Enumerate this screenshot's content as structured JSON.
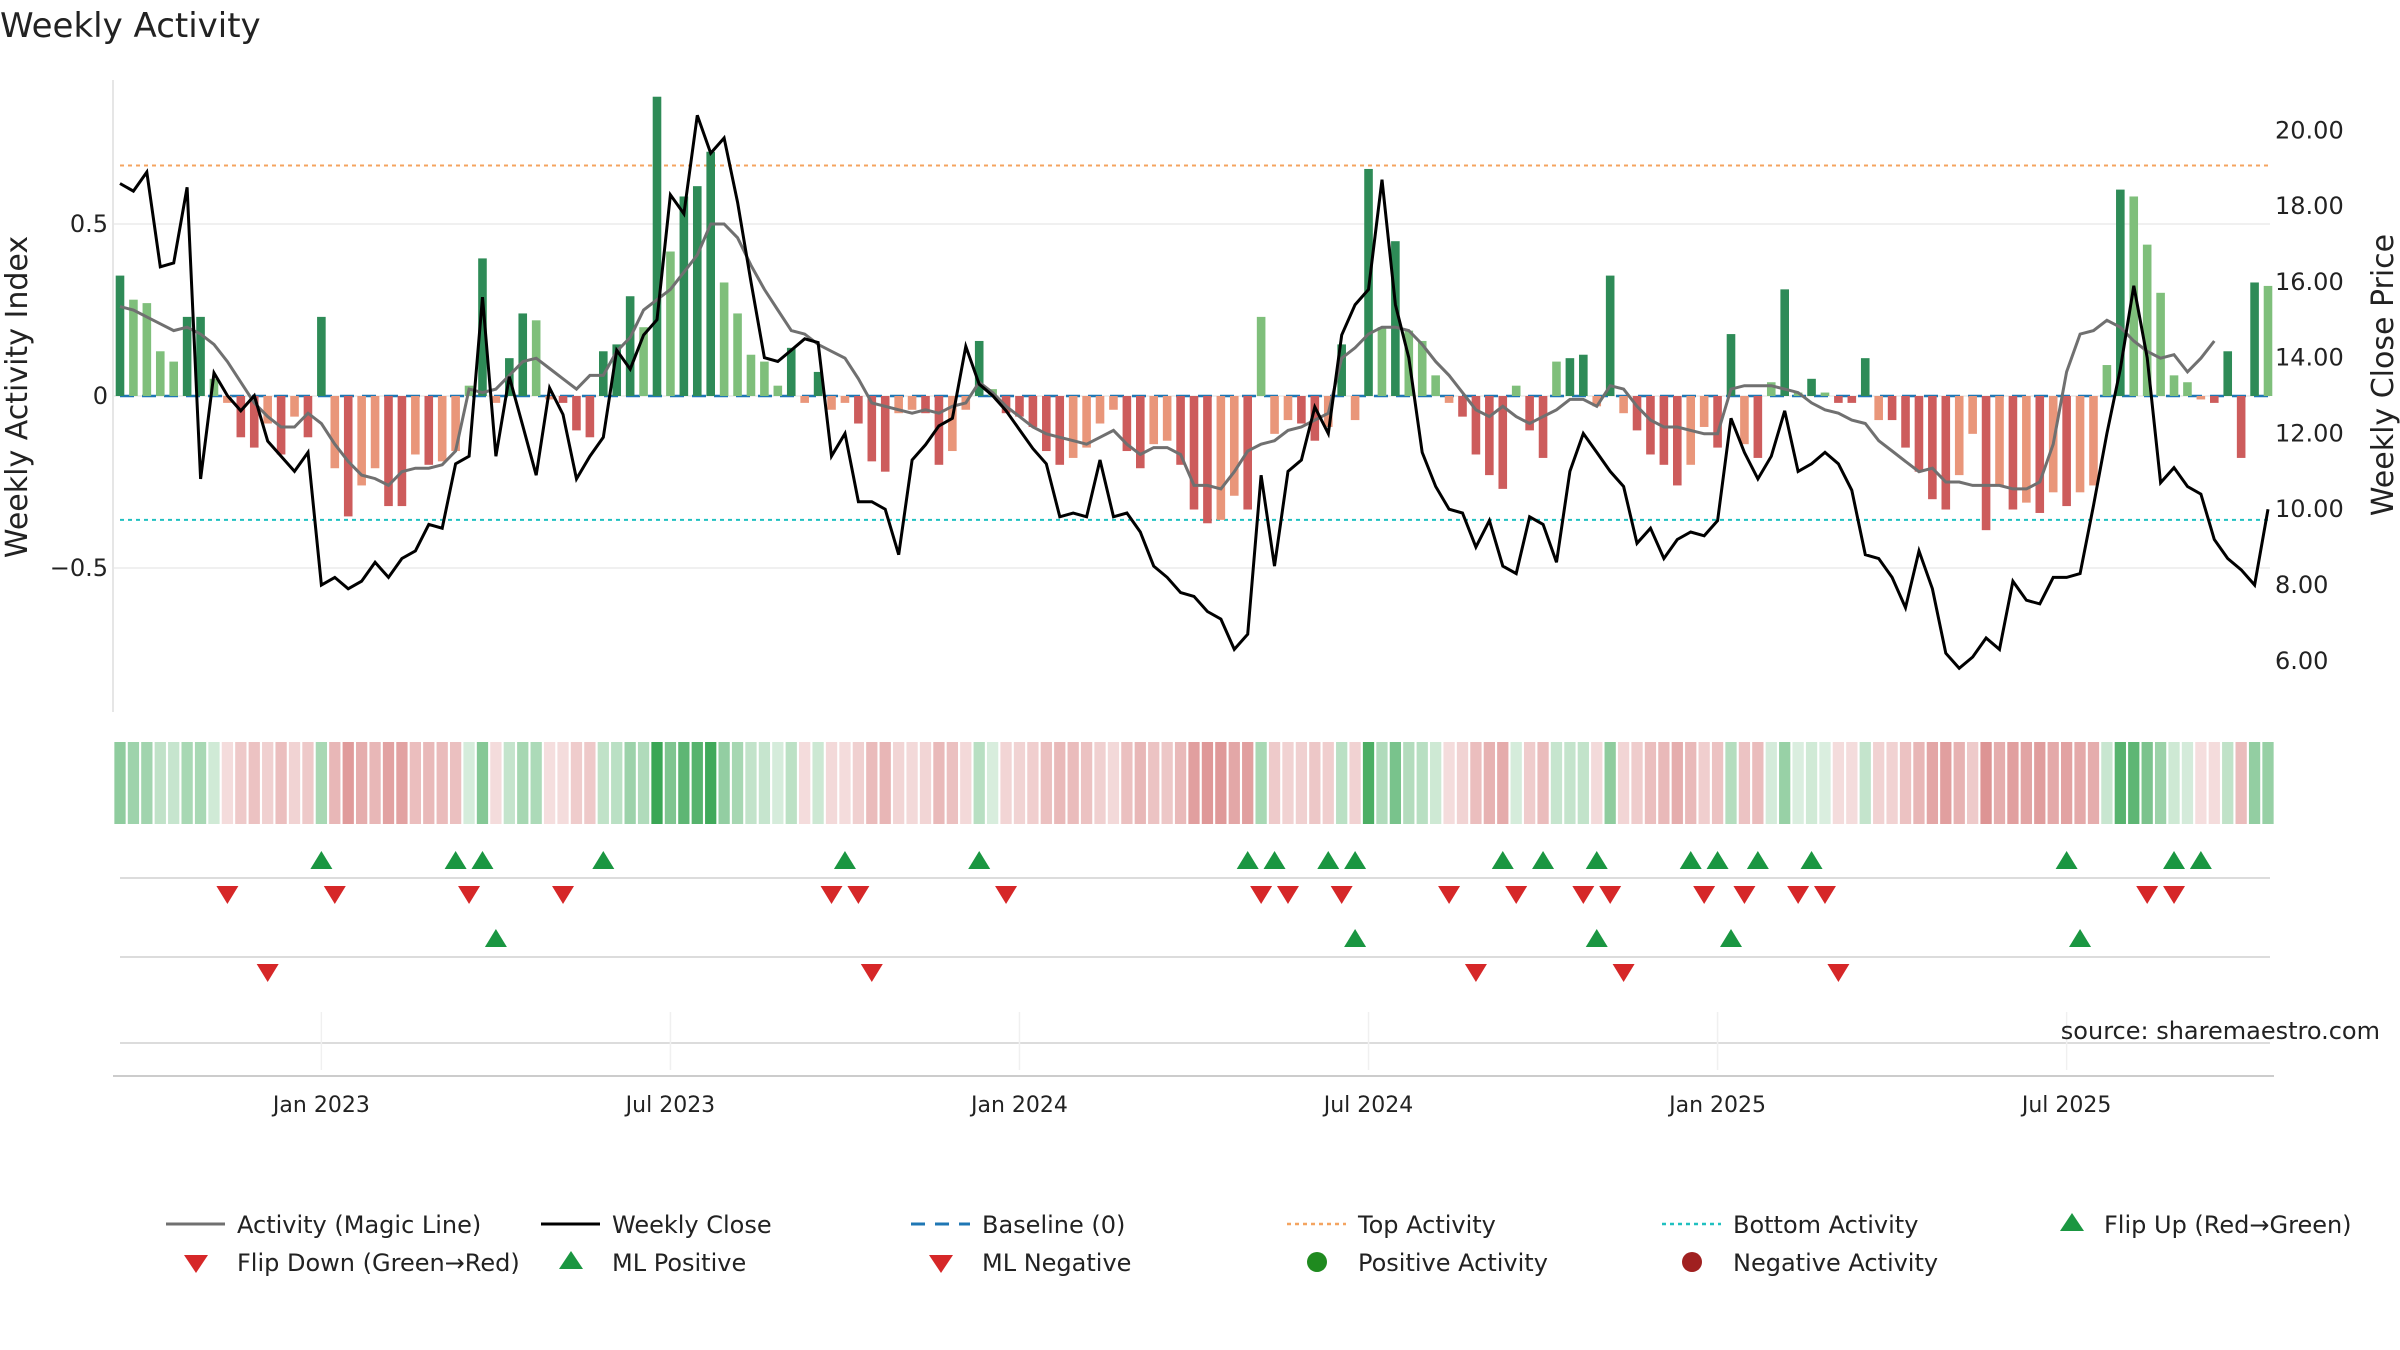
{
  "chart_data": {
    "type": "bar",
    "title": "Weekly Activity",
    "ylabel_left": "Weekly Activity Index",
    "ylabel_right": "Weekly Close Price",
    "source": "source: sharemaestro.com",
    "left_axis": {
      "ylim": [
        -0.92,
        0.92
      ],
      "ticks": [
        {
          "value": 0.5,
          "label": "0.5"
        },
        {
          "value": 0,
          "label": "0"
        },
        {
          "value": -0.5,
          "label": "−0.5"
        }
      ]
    },
    "right_axis": {
      "ylim": [
        4.7,
        21.2
      ],
      "ticks": [
        {
          "value": 20,
          "label": "20.00"
        },
        {
          "value": 18,
          "label": "18.00"
        },
        {
          "value": 16,
          "label": "16.00"
        },
        {
          "value": 14,
          "label": "14.00"
        },
        {
          "value": 12,
          "label": "12.00"
        },
        {
          "value": 10,
          "label": "10.00"
        },
        {
          "value": 8,
          "label": "8.00"
        },
        {
          "value": 6,
          "label": "6.00"
        }
      ]
    },
    "date_ticks": [
      {
        "week": 15,
        "label": "Jan 2023"
      },
      {
        "week": 41,
        "label": "Jul 2023"
      },
      {
        "week": 67,
        "label": "Jan 2024"
      },
      {
        "week": 93,
        "label": "Jul 2024"
      },
      {
        "week": 119,
        "label": "Jan 2025"
      },
      {
        "week": 145,
        "label": "Jul 2025"
      }
    ],
    "top_activity": 0.67,
    "bottom_activity": -0.36,
    "activity": [
      0.35,
      0.28,
      0.27,
      0.13,
      0.1,
      0.23,
      0.23,
      0.05,
      -0.02,
      -0.12,
      -0.15,
      -0.08,
      -0.17,
      -0.06,
      -0.12,
      0.23,
      -0.21,
      -0.35,
      -0.26,
      -0.21,
      -0.32,
      -0.32,
      -0.17,
      -0.2,
      -0.19,
      -0.16,
      0.03,
      0.4,
      -0.02,
      0.11,
      0.24,
      0.22,
      -0.01,
      -0.02,
      -0.1,
      -0.12,
      0.13,
      0.15,
      0.29,
      0.2,
      0.87,
      0.42,
      0.58,
      0.61,
      0.71,
      0.33,
      0.24,
      0.12,
      0.1,
      0.03,
      0.14,
      -0.02,
      0.07,
      -0.04,
      -0.02,
      -0.08,
      -0.19,
      -0.22,
      -0.05,
      -0.04,
      -0.05,
      -0.2,
      -0.16,
      -0.04,
      0.16,
      0.02,
      -0.05,
      -0.06,
      -0.09,
      -0.16,
      -0.2,
      -0.18,
      -0.15,
      -0.08,
      -0.04,
      -0.16,
      -0.21,
      -0.14,
      -0.13,
      -0.2,
      -0.33,
      -0.37,
      -0.36,
      -0.29,
      -0.33,
      0.23,
      -0.11,
      -0.07,
      -0.08,
      -0.13,
      -0.09,
      0.15,
      -0.07,
      0.66,
      0.2,
      0.45,
      0.19,
      0.16,
      0.06,
      -0.02,
      -0.06,
      -0.17,
      -0.23,
      -0.27,
      0.03,
      -0.1,
      -0.18,
      0.1,
      0.11,
      0.12,
      -0.03,
      0.35,
      -0.05,
      -0.1,
      -0.17,
      -0.2,
      -0.26,
      -0.2,
      -0.09,
      -0.15,
      0.18,
      -0.14,
      -0.18,
      0.04,
      0.31,
      0.01,
      0.05,
      0.01,
      -0.02,
      -0.02,
      0.11,
      -0.07,
      -0.07,
      -0.15,
      -0.22,
      -0.3,
      -0.33,
      -0.23,
      -0.11,
      -0.39,
      -0.26,
      -0.33,
      -0.31,
      -0.34,
      -0.28,
      -0.32,
      -0.28,
      -0.26,
      0.09,
      0.6,
      0.58,
      0.44,
      0.3,
      0.06,
      0.04,
      -0.01,
      -0.02,
      0.13,
      -0.18,
      0.33,
      0.32
    ],
    "weekly_close": [
      18.6,
      18.4,
      18.9,
      16.4,
      16.5,
      18.5,
      10.8,
      13.6,
      13.0,
      12.6,
      13.0,
      11.8,
      11.4,
      11.0,
      11.5,
      8.0,
      8.2,
      7.9,
      8.1,
      8.6,
      8.2,
      8.7,
      8.9,
      9.6,
      9.5,
      11.2,
      11.4,
      15.6,
      11.4,
      13.5,
      12.2,
      10.9,
      13.2,
      12.5,
      10.8,
      11.4,
      11.9,
      14.2,
      13.7,
      14.6,
      15.0,
      18.3,
      17.8,
      20.4,
      19.4,
      19.8,
      18.1,
      16.0,
      14.0,
      13.9,
      14.2,
      14.5,
      14.4,
      11.4,
      12.0,
      10.2,
      10.2,
      10.0,
      8.8,
      11.3,
      11.7,
      12.2,
      12.4,
      14.3,
      13.3,
      13.0,
      12.6,
      12.1,
      11.6,
      11.2,
      9.8,
      9.9,
      9.8,
      11.3,
      9.8,
      9.9,
      9.4,
      8.5,
      8.2,
      7.8,
      7.7,
      7.3,
      7.1,
      6.3,
      6.7,
      10.9,
      8.5,
      11.0,
      11.3,
      12.7,
      12.0,
      14.6,
      15.4,
      15.8,
      18.7,
      15.4,
      14.0,
      11.5,
      10.6,
      10.0,
      9.9,
      9.0,
      9.7,
      8.5,
      8.3,
      9.8,
      9.6,
      8.6,
      11.0,
      12.0,
      11.5,
      11.0,
      10.6,
      9.1,
      9.5,
      8.7,
      9.2,
      9.4,
      9.3,
      9.7,
      12.4,
      11.5,
      10.8,
      11.4,
      12.6,
      11.0,
      11.2,
      11.5,
      11.2,
      10.5,
      8.8,
      8.7,
      8.2,
      7.4,
      8.9,
      7.9,
      6.2,
      5.8,
      6.1,
      6.6,
      6.3,
      8.1,
      7.6,
      7.5,
      8.2,
      8.2,
      8.3,
      10.1,
      12.0,
      13.7,
      15.9,
      14.0,
      10.7,
      11.1,
      10.6,
      10.4,
      9.2,
      8.7,
      8.4,
      8.0,
      10.0
    ],
    "magic_line": [
      0.26,
      0.25,
      0.23,
      0.21,
      0.19,
      0.2,
      0.18,
      0.15,
      0.1,
      0.04,
      -0.02,
      -0.06,
      -0.09,
      -0.09,
      -0.05,
      -0.08,
      -0.14,
      -0.19,
      -0.23,
      -0.24,
      -0.26,
      -0.22,
      -0.21,
      -0.21,
      -0.2,
      -0.16,
      0.02,
      0.01,
      0.02,
      0.06,
      0.1,
      0.11,
      0.08,
      0.05,
      0.02,
      0.06,
      0.06,
      0.13,
      0.17,
      0.25,
      0.28,
      0.31,
      0.36,
      0.41,
      0.5,
      0.5,
      0.46,
      0.38,
      0.31,
      0.25,
      0.19,
      0.18,
      0.15,
      0.13,
      0.11,
      0.05,
      -0.02,
      -0.03,
      -0.04,
      -0.05,
      -0.04,
      -0.05,
      -0.03,
      -0.02,
      0.04,
      0.01,
      -0.03,
      -0.06,
      -0.09,
      -0.11,
      -0.12,
      -0.13,
      -0.14,
      -0.12,
      -0.1,
      -0.14,
      -0.17,
      -0.15,
      -0.15,
      -0.17,
      -0.26,
      -0.26,
      -0.27,
      -0.22,
      -0.16,
      -0.14,
      -0.13,
      -0.1,
      -0.09,
      -0.07,
      -0.05,
      0.11,
      0.14,
      0.18,
      0.2,
      0.2,
      0.19,
      0.15,
      0.1,
      0.06,
      0.01,
      -0.04,
      -0.06,
      -0.03,
      -0.06,
      -0.08,
      -0.06,
      -0.04,
      -0.01,
      -0.01,
      -0.03,
      0.03,
      0.02,
      -0.03,
      -0.07,
      -0.09,
      -0.09,
      -0.1,
      -0.11,
      -0.11,
      0.02,
      0.03,
      0.03,
      0.03,
      0.02,
      0.01,
      -0.02,
      -0.04,
      -0.05,
      -0.07,
      -0.08,
      -0.13,
      -0.16,
      -0.19,
      -0.22,
      -0.21,
      -0.25,
      -0.25,
      -0.26,
      -0.26,
      -0.26,
      -0.27,
      -0.27,
      -0.25,
      -0.14,
      0.07,
      0.18,
      0.19,
      0.22,
      0.2,
      0.16,
      0.13,
      0.11,
      0.12,
      0.07,
      0.11,
      0.16
    ],
    "flip_up": [
      15,
      25,
      27,
      36,
      54,
      64,
      84,
      86,
      90,
      92,
      103,
      106,
      110,
      117,
      119,
      122,
      126,
      145,
      153,
      155
    ],
    "flip_down": [
      8,
      16,
      26,
      33,
      53,
      55,
      66,
      85,
      87,
      91,
      99,
      104,
      109,
      111,
      118,
      121,
      125,
      127,
      151,
      153
    ],
    "ml_positive": [
      28,
      92,
      110,
      120,
      146
    ],
    "ml_negative": [
      11,
      56,
      101,
      112,
      128
    ],
    "legend": [
      "Activity (Magic Line)",
      "Weekly Close",
      "Baseline (0)",
      "Top Activity",
      "Bottom Activity",
      "Flip Up (Red→Green)",
      "Flip Down (Green→Red)",
      "ML Positive",
      "ML Negative",
      "Positive Activity",
      "Negative Activity"
    ]
  },
  "colors": {
    "green_strong": "#2e8b57",
    "green_light": "#7fbf7b",
    "red_strong": "#cd5c5c",
    "red_light": "#e9967a",
    "magic_line": "#707070",
    "close_line": "#000000",
    "baseline": "#1f77b4",
    "top_line": "#f4a460",
    "bottom_line": "#20c0c0",
    "marker_up": "#1a9641",
    "marker_down": "#d62728",
    "dot_pos": "#1f8a1f",
    "dot_neg": "#a02020"
  }
}
